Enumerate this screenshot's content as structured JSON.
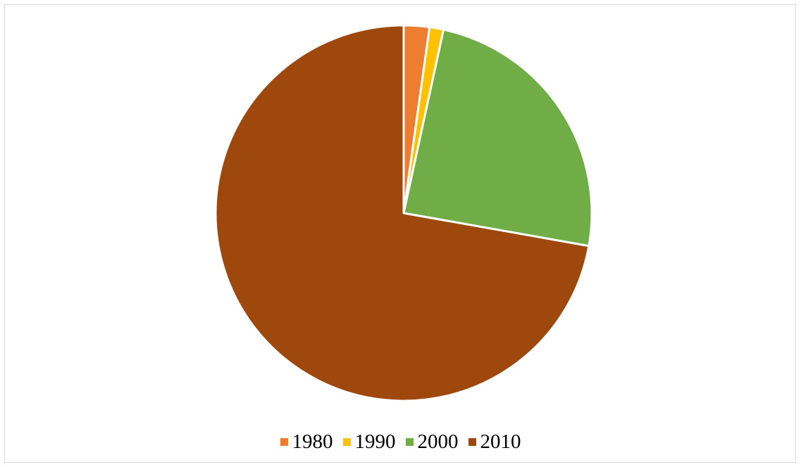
{
  "chart_data": {
    "type": "pie",
    "categories": [
      "1980",
      "1990",
      "2000",
      "2010"
    ],
    "values": [
      2.2,
      1.2,
      24.4,
      72.2
    ],
    "colors": [
      "#ed7d31",
      "#ffc000",
      "#70ad47",
      "#9e480e"
    ],
    "start_angle_deg": 0,
    "direction": "clockwise",
    "slice_border_color": "#ffffff",
    "legend_position": "bottom"
  }
}
